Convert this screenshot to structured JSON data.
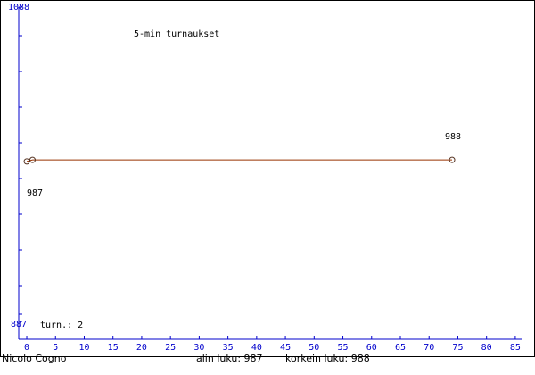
{
  "chart_data": {
    "type": "line",
    "title": "5-min turnaukset",
    "x": [
      0,
      1,
      74
    ],
    "series": [
      {
        "name": null,
        "color": "#993300",
        "values": [
          987,
          988,
          988
        ],
        "value_labels": [
          "987",
          null,
          "988"
        ]
      }
    ],
    "xlim": [
      -1.4,
      86.1
    ],
    "xticks": [
      0,
      5,
      10,
      15,
      20,
      25,
      30,
      35,
      40,
      45,
      50,
      55,
      60,
      65,
      70,
      75,
      80,
      85
    ],
    "ylim": [
      887,
      1088
    ],
    "yticks": [
      887,
      1088
    ],
    "axis_color": "#0000cc",
    "annotations": [
      "turn.: 2",
      "Nicolo Cogno",
      "alin luku: 987",
      "korkein luku: 988"
    ]
  }
}
